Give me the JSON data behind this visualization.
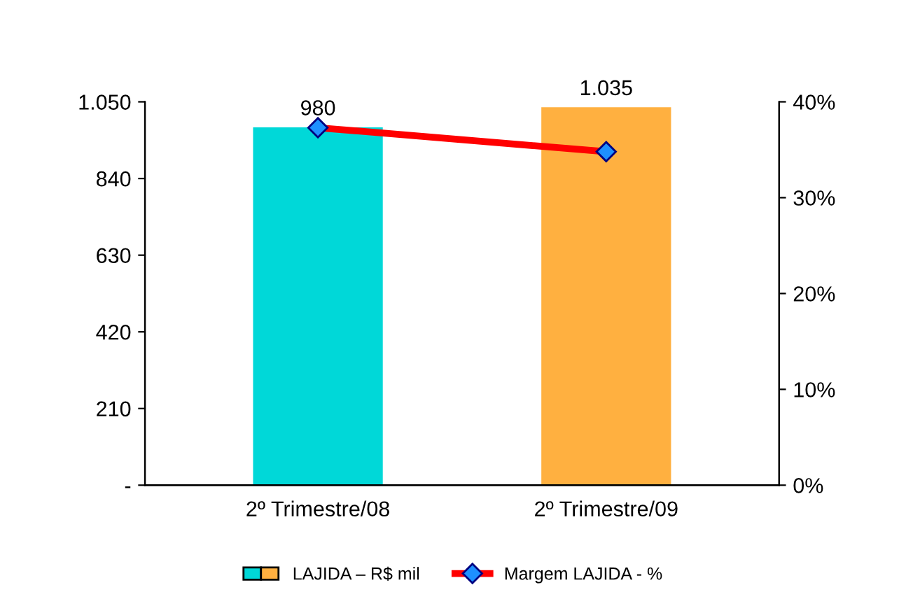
{
  "chart_data": {
    "type": "bar",
    "categories": [
      "2º Trimestre/08",
      "2º Trimestre/09"
    ],
    "series": [
      {
        "name": "LAJIDA – R$ mil",
        "colors": [
          "#00d8d8",
          "#ffb040"
        ],
        "values": [
          980,
          1035
        ],
        "value_labels": [
          "980",
          "1.035"
        ]
      },
      {
        "name": "Margem LAJIDA - %",
        "type": "line",
        "axis": "y2",
        "color": "#ff0000",
        "marker": "diamond",
        "line_style": "solid",
        "values": [
          37.3,
          34.8
        ]
      }
    ],
    "ylim": [
      0,
      1050
    ],
    "yticks": [
      {
        "value": 0,
        "label": "-"
      },
      210,
      420,
      630,
      840,
      {
        "value": 1050,
        "label": "1.050"
      }
    ],
    "y2lim": [
      0,
      40
    ],
    "y2ticks": [
      {
        "value": 0,
        "label": "0%"
      },
      {
        "value": 10,
        "label": "10%"
      },
      {
        "value": 20,
        "label": "20%"
      },
      {
        "value": 30,
        "label": "30%"
      },
      {
        "value": 40,
        "label": "40%"
      }
    ],
    "grid": false,
    "legend": "bottom"
  }
}
